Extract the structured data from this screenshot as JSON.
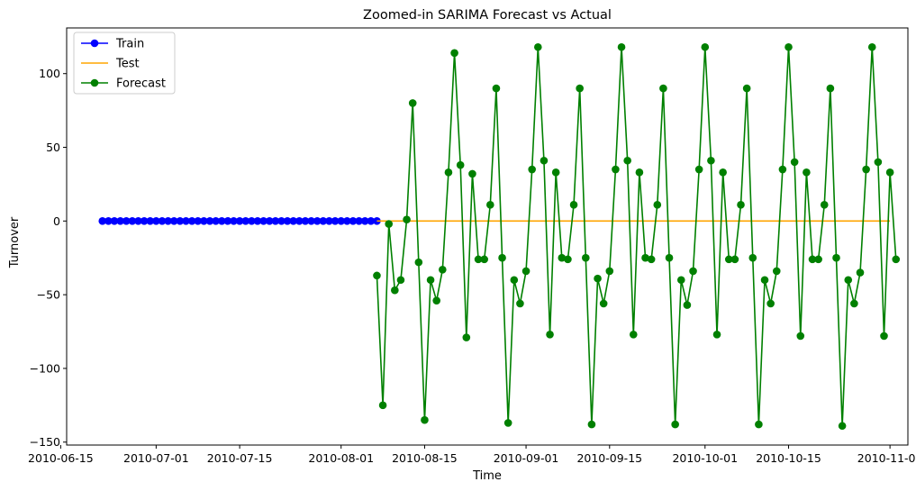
{
  "chart_data": {
    "type": "line",
    "title": "Zoomed-in SARIMA Forecast vs Actual",
    "xlabel": "Time",
    "ylabel": "Turnover",
    "ylim": [
      -152,
      131
    ],
    "xlim": [
      "2010-06-16",
      "2010-11-04"
    ],
    "x_ticks": [
      "2010-06-15",
      "2010-07-01",
      "2010-07-15",
      "2010-08-01",
      "2010-08-15",
      "2010-09-01",
      "2010-09-15",
      "2010-10-01",
      "2010-10-15",
      "2010-11-01"
    ],
    "y_ticks": [
      -150,
      -100,
      -50,
      0,
      50,
      100
    ],
    "y_tick_labels": [
      "−150",
      "−100",
      "−50",
      "0",
      "50",
      "100"
    ],
    "grid": false,
    "legend": "top-left",
    "series": [
      {
        "name": "Train",
        "color": "#0000ff",
        "marker": "circle",
        "start": "2010-06-22",
        "end": "2010-08-07",
        "constant": 0
      },
      {
        "name": "Test",
        "color": "#ffa500",
        "marker": "none",
        "x": [
          "2010-08-07",
          "2010-11-01"
        ],
        "values": [
          0,
          0
        ]
      },
      {
        "name": "Forecast",
        "color": "#008000",
        "marker": "circle",
        "start": "2010-08-07",
        "values": [
          -37,
          -125,
          -2,
          -47,
          -40,
          1,
          80,
          -28,
          -135,
          -40,
          -54,
          -33,
          33,
          114,
          38,
          -79,
          32,
          -26,
          -26,
          11,
          90,
          -25,
          -137,
          -40,
          -56,
          -34,
          35,
          118,
          41,
          -77,
          33,
          -25,
          -26,
          11,
          90,
          -25,
          -138,
          -39,
          -56,
          -34,
          35,
          118,
          41,
          -77,
          33,
          -25,
          -26,
          11,
          90,
          -25,
          -138,
          -40,
          -57,
          -34,
          35,
          118,
          41,
          -77,
          33,
          -26,
          -26,
          11,
          90,
          -25,
          -138,
          -40,
          -56,
          -34,
          35,
          118,
          40,
          -78,
          33,
          -26,
          -26,
          11,
          90,
          -25,
          -139,
          -40,
          -56,
          -35,
          35,
          118,
          40,
          -78,
          33,
          -26
        ]
      }
    ]
  }
}
